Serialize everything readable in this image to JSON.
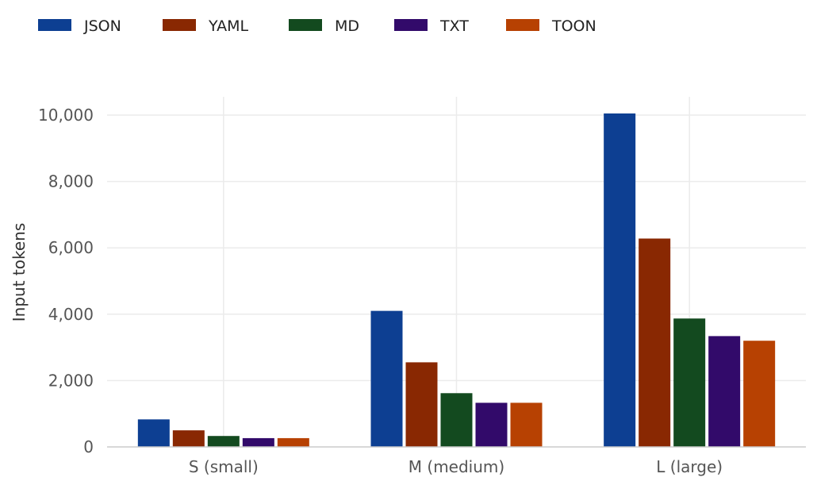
{
  "chart_data": {
    "type": "bar",
    "title": "",
    "xlabel": "",
    "ylabel": "Input tokens",
    "categories": [
      "S (small)",
      "M (medium)",
      "L (large)"
    ],
    "ylim": [
      0,
      10500
    ],
    "yticks": [
      0,
      2000,
      4000,
      6000,
      8000,
      10000
    ],
    "ytick_labels": [
      "0",
      "2,000",
      "4,000",
      "6,000",
      "8,000",
      "10,000"
    ],
    "grid": true,
    "legend_position": "top-left",
    "series": [
      {
        "name": "JSON",
        "color": "#0d3f92",
        "values": [
          830,
          4100,
          10050
        ]
      },
      {
        "name": "YAML",
        "color": "#892802",
        "values": [
          500,
          2550,
          6280
        ]
      },
      {
        "name": "MD",
        "color": "#134a1f",
        "values": [
          330,
          1620,
          3870
        ]
      },
      {
        "name": "TXT",
        "color": "#320a6a",
        "values": [
          265,
          1330,
          3340
        ]
      },
      {
        "name": "TOON",
        "color": "#b74102",
        "values": [
          265,
          1330,
          3200
        ]
      }
    ]
  }
}
